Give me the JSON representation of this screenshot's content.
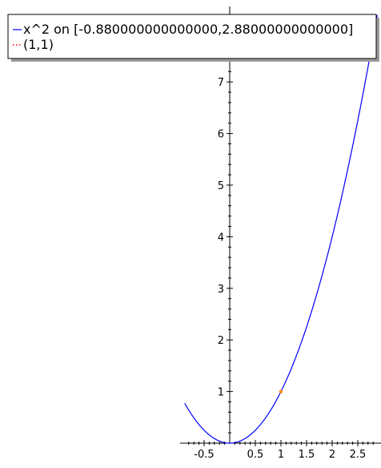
{
  "chart_data": {
    "type": "line",
    "title": "",
    "xlabel": "",
    "ylabel": "",
    "xlim": [
      -0.88,
      2.88
    ],
    "ylim": [
      0,
      7.7
    ],
    "grid": false,
    "legend_position": "top-left",
    "x_ticks": [
      {
        "value": -0.5,
        "label": "-0.5"
      },
      {
        "value": 0.5,
        "label": "0.5"
      },
      {
        "value": 1,
        "label": "1"
      },
      {
        "value": 1.5,
        "label": "1.5"
      },
      {
        "value": 2,
        "label": "2"
      },
      {
        "value": 2.5,
        "label": "2.5"
      }
    ],
    "y_ticks": [
      {
        "value": 1,
        "label": "1"
      },
      {
        "value": 2,
        "label": "2"
      },
      {
        "value": 3,
        "label": "3"
      },
      {
        "value": 4,
        "label": "4"
      },
      {
        "value": 5,
        "label": "5"
      },
      {
        "value": 6,
        "label": "6"
      },
      {
        "value": 7,
        "label": "7"
      }
    ],
    "series": [
      {
        "name": "x^2 on [-0.880000000000000,2.88000000000000]",
        "kind": "function",
        "function": "x^2",
        "domain": [
          -0.88,
          2.88
        ],
        "color": "#0000ff"
      },
      {
        "name": "(1,1)",
        "kind": "point",
        "points": [
          [
            1,
            1
          ]
        ],
        "color": "#ff0000",
        "marker_color": "#ff8c00"
      }
    ]
  }
}
